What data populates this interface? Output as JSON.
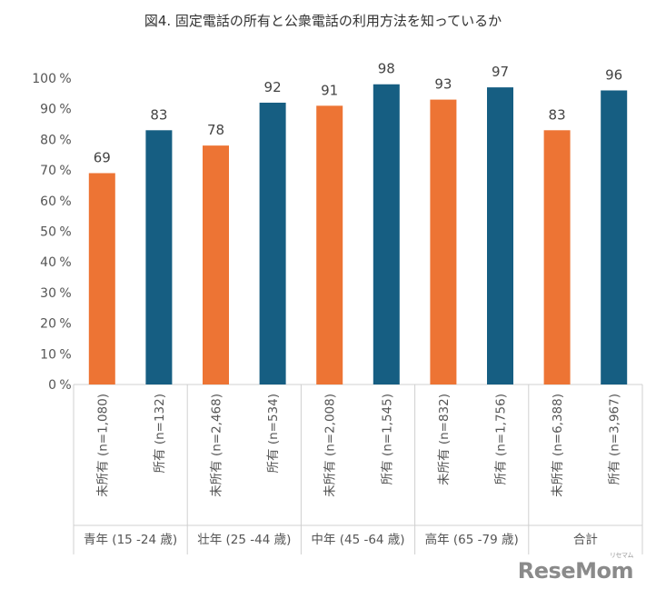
{
  "chart_data": {
    "type": "bar",
    "title": "図4. 固定電話の所有と公衆電話の利用方法を知っているか",
    "y_unit": "%",
    "ylim": [
      0,
      100
    ],
    "yticks": [
      0,
      10,
      20,
      30,
      40,
      50,
      60,
      70,
      80,
      90,
      100
    ],
    "grid": false,
    "legend": "none",
    "categories": [
      "未所有 (n=1,080)",
      "所有 (n=132)",
      "未所有 (n=2,468)",
      "所有 (n=534)",
      "未所有 (n=2,008)",
      "所有 (n=1,545)",
      "未所有 (n=832)",
      "所有 (n=1,756)",
      "未所有 (n=6,388)",
      "所有 (n=3,967)"
    ],
    "values": [
      69,
      83,
      78,
      92,
      91,
      98,
      93,
      97,
      83,
      96
    ],
    "groups": [
      {
        "label": "青年 (15 -24 歳)",
        "categories": [
          0,
          1
        ]
      },
      {
        "label": "壮年 (25 -44 歳)",
        "categories": [
          2,
          3
        ]
      },
      {
        "label": "中年 (45 -64 歳)",
        "categories": [
          4,
          5
        ]
      },
      {
        "label": "高年 (65 -79 歳)",
        "categories": [
          6,
          7
        ]
      },
      {
        "label": "合計",
        "categories": [
          8,
          9
        ]
      }
    ],
    "colors": {
      "未所有": "#ED7434",
      "所有": "#165E82"
    }
  },
  "logo": {
    "text": "ReseMom",
    "kana": "リセマム"
  }
}
